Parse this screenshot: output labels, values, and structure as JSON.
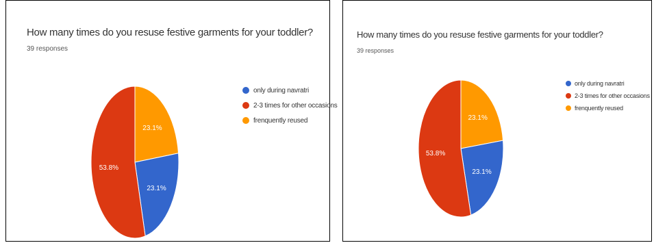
{
  "chart_data": [
    {
      "type": "pie",
      "title": "How many times do you resuse  festive garments for your toddler?",
      "subtitle": "39 responses",
      "legend_position": "right",
      "slices": [
        {
          "label": "only during navratri",
          "value": 23.1,
          "display": "23.1%",
          "color": "#3366cc"
        },
        {
          "label": "2-3 times for other occasions",
          "value": 53.8,
          "display": "53.8%",
          "color": "#dc3912"
        },
        {
          "label": "frenquently reused",
          "value": 23.1,
          "display": "23.1%",
          "color": "#ff9900"
        }
      ]
    },
    {
      "type": "pie",
      "title": "How many times do you resuse  festive garments for your toddler?",
      "subtitle": "39 responses",
      "legend_position": "right",
      "slices": [
        {
          "label": "only during navratri",
          "value": 23.1,
          "display": "23.1%",
          "color": "#3366cc"
        },
        {
          "label": "2-3 times for other occasions",
          "value": 53.8,
          "display": "53.8%",
          "color": "#dc3912"
        },
        {
          "label": "frenquently reused",
          "value": 23.1,
          "display": "23.1%",
          "color": "#ff9900"
        }
      ]
    }
  ]
}
